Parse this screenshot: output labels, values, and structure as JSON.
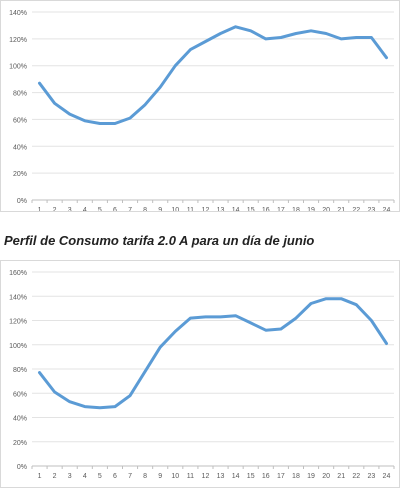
{
  "caption": "Perfil de Consumo tarifa 2.0 A para un día de junio",
  "line_color": "#5b9bd5",
  "chart_data": [
    {
      "type": "line",
      "categories": [
        "1",
        "2",
        "3",
        "4",
        "5",
        "6",
        "7",
        "8",
        "9",
        "10",
        "11",
        "12",
        "13",
        "14",
        "15",
        "16",
        "17",
        "18",
        "19",
        "20",
        "21",
        "22",
        "23",
        "24"
      ],
      "series": [
        {
          "values": [
            87,
            72,
            64,
            59,
            57,
            57,
            61,
            71,
            84,
            100,
            112,
            118,
            124,
            129,
            126,
            120,
            121,
            124,
            126,
            124,
            120,
            121,
            121,
            106
          ]
        }
      ],
      "yticks": [
        "0%",
        "20%",
        "40%",
        "60%",
        "80%",
        "100%",
        "120%",
        "140%"
      ],
      "ylim": [
        0,
        140
      ],
      "grid": true,
      "legend": false
    },
    {
      "type": "line",
      "categories": [
        "1",
        "2",
        "3",
        "4",
        "5",
        "6",
        "7",
        "8",
        "9",
        "10",
        "11",
        "12",
        "13",
        "14",
        "15",
        "16",
        "17",
        "18",
        "19",
        "20",
        "21",
        "22",
        "23",
        "24"
      ],
      "series": [
        {
          "values": [
            77,
            61,
            53,
            49,
            48,
            49,
            58,
            78,
            98,
            111,
            122,
            123,
            123,
            124,
            118,
            112,
            113,
            122,
            134,
            138,
            138,
            133,
            120,
            101
          ]
        }
      ],
      "yticks": [
        "0%",
        "20%",
        "40%",
        "60%",
        "80%",
        "100%",
        "120%",
        "140%",
        "160%"
      ],
      "ylim": [
        0,
        160
      ],
      "grid": true,
      "legend": false
    }
  ]
}
